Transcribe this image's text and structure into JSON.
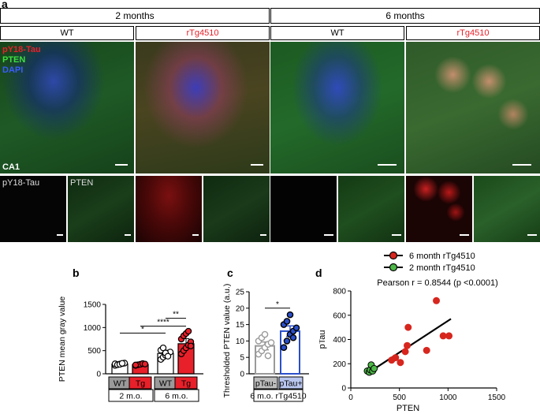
{
  "figure": {
    "panel_a_label": "a",
    "panel_b_label": "b",
    "panel_c_label": "c",
    "panel_d_label": "d",
    "age_headers": [
      "2 months",
      "6 months"
    ],
    "genotype_headers": [
      "WT",
      "rTg4510",
      "WT",
      "rTg4510"
    ],
    "channel_labels": {
      "pY18": "pY18-Tau",
      "pten": "PTEN",
      "dapi": "DAPI"
    },
    "region_label": "CA1",
    "split_labels": {
      "left": "pY18-Tau",
      "right": "PTEN"
    }
  },
  "colors": {
    "red_accent": "#e8202a",
    "blue_accent": "#2a4fc9",
    "gray_bar": "#9a9a9a",
    "green_dot": "#4db848",
    "red_dot": "#d7261e"
  },
  "chart_data": [
    {
      "type": "bar",
      "panel": "b",
      "ylabel": "PTEN mean gray value",
      "ylim": [
        0,
        1500
      ],
      "yticks": [
        0,
        500,
        1000,
        1500
      ],
      "categories": [
        "WT",
        "Tg",
        "WT",
        "Tg"
      ],
      "groups": [
        "2 m.o.",
        "6 m.o."
      ],
      "values": [
        210,
        200,
        440,
        650
      ],
      "errors": [
        20,
        20,
        70,
        110
      ],
      "bar_colors": [
        "#ffffff",
        "#e8202a",
        "#ffffff",
        "#e8202a"
      ],
      "points": [
        [
          180,
          200,
          210,
          220,
          230,
          215,
          195,
          205,
          225
        ],
        [
          180,
          195,
          205,
          220,
          210,
          190
        ],
        [
          310,
          360,
          400,
          430,
          470,
          510,
          560,
          450,
          380
        ],
        [
          430,
          500,
          560,
          620,
          690,
          750,
          820,
          870,
          920,
          600
        ]
      ],
      "significance": [
        {
          "from": 0,
          "to": 2,
          "label": "*",
          "y": 880
        },
        {
          "from": 1,
          "to": 3,
          "label": "****",
          "y": 1030
        },
        {
          "from": 2,
          "to": 3,
          "label": "**",
          "y": 1200
        }
      ]
    },
    {
      "type": "bar",
      "panel": "c",
      "ylabel": "Thresholded PTEN value (a.u.)",
      "ylim": [
        0,
        25
      ],
      "yticks": [
        0,
        5,
        10,
        15,
        20,
        25
      ],
      "categories": [
        "pTau-",
        "pTau+"
      ],
      "group": "6 m.o. rTg4510",
      "values": [
        8.5,
        13
      ],
      "errors": [
        1.2,
        1.6
      ],
      "bar_colors": [
        "#9a9a9a",
        "#2a4fc9"
      ],
      "points": [
        [
          6,
          7,
          8,
          9,
          9.5,
          10,
          11,
          12,
          5.5
        ],
        [
          8,
          10,
          12,
          13,
          14,
          15,
          16,
          18,
          11
        ]
      ],
      "significance": [
        {
          "from": 0,
          "to": 1,
          "label": "*",
          "y": 20
        }
      ]
    },
    {
      "type": "scatter",
      "panel": "d",
      "xlabel": "PTEN",
      "ylabel": "pTau",
      "xlim": [
        0,
        1500
      ],
      "ylim": [
        0,
        800
      ],
      "xticks": [
        0,
        500,
        1000,
        1500
      ],
      "yticks": [
        0,
        200,
        400,
        600,
        800
      ],
      "annotation": "Pearson r = 0.8544 (p <0.0001)",
      "series": [
        {
          "name": "6 month rTg4510",
          "color": "#d7261e",
          "x": [
            420,
            460,
            510,
            560,
            580,
            590,
            780,
            880,
            950,
            1010
          ],
          "y": [
            230,
            250,
            210,
            300,
            350,
            500,
            310,
            720,
            430,
            430
          ]
        },
        {
          "name": "2 month rTg4510",
          "color": "#4db848",
          "x": [
            170,
            190,
            200,
            210,
            225,
            240
          ],
          "y": [
            140,
            130,
            150,
            190,
            140,
            160
          ]
        }
      ],
      "fit": {
        "x": [
          170,
          1030
        ],
        "y": [
          120,
          570
        ]
      }
    }
  ]
}
